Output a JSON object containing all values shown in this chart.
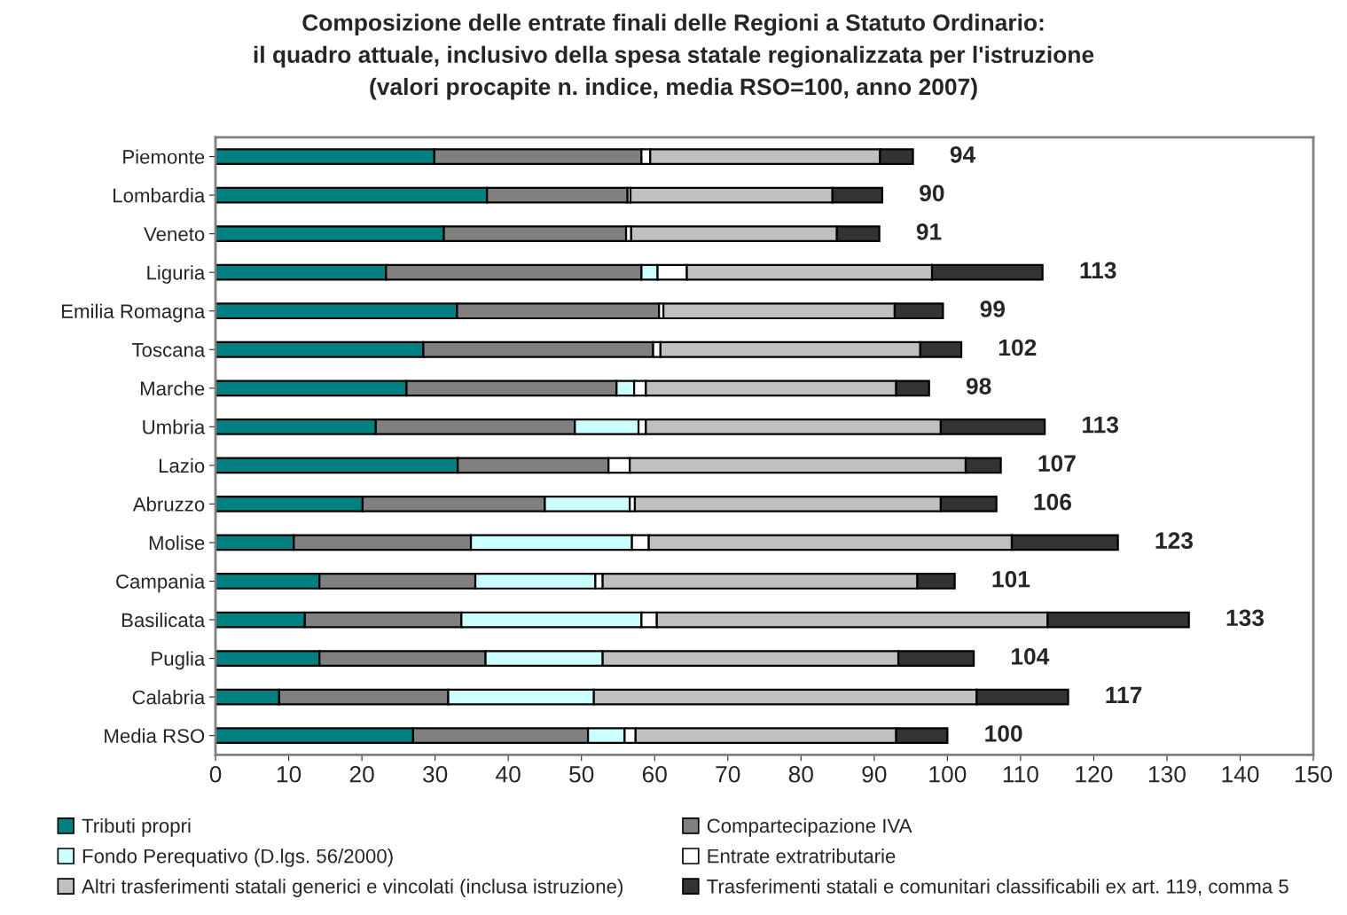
{
  "chart_data": {
    "type": "bar",
    "orientation": "horizontal",
    "stacked": true,
    "title": "Composizione delle entrate finali delle Regioni a Statuto Ordinario:\nil quadro attuale, inclusivo della spesa statale regionalizzata per l'istruzione\n(valori procapite n. indice, media RSO=100, anno 2007)",
    "categories": [
      "Piemonte",
      "Lombardia",
      "Veneto",
      "Liguria",
      "Emilia Romagna",
      "Toscana",
      "Marche",
      "Umbria",
      "Lazio",
      "Abruzzo",
      "Molise",
      "Campania",
      "Basilicata",
      "Puglia",
      "Calabria",
      "Media RSO"
    ],
    "series": [
      {
        "name": "Tributi propri",
        "color": "#008080",
        "values": [
          29.9,
          37.1,
          31.2,
          23.3,
          33.0,
          28.4,
          26.1,
          21.9,
          33.1,
          20.1,
          10.7,
          14.2,
          12.2,
          14.2,
          8.7,
          27.0
        ]
      },
      {
        "name": "Compartecipazione IVA",
        "color": "#808080",
        "values": [
          28.3,
          19.2,
          24.9,
          34.9,
          27.6,
          31.4,
          28.7,
          27.2,
          20.6,
          24.9,
          24.2,
          21.3,
          21.4,
          22.7,
          23.1,
          23.9
        ]
      },
      {
        "name": "Fondo Perequativo (D.lgs. 56/2000)",
        "color": "#ccffff",
        "values": [
          null,
          null,
          null,
          2.2,
          null,
          null,
          2.4,
          8.7,
          null,
          11.6,
          22.0,
          16.4,
          24.6,
          16.0,
          19.9,
          5.0
        ]
      },
      {
        "name": "Entrate extratributarie",
        "color": "#ffffff",
        "values": [
          1.2,
          0.4,
          0.7,
          4.0,
          0.6,
          1.0,
          1.6,
          1.0,
          2.9,
          0.7,
          2.3,
          1.0,
          2.1,
          null,
          null,
          1.5
        ]
      },
      {
        "name": "Altri trasferimenti statali generici e vincolati (inclusa istruzione)",
        "color": "#c0c0c0",
        "values": [
          31.4,
          27.6,
          28.1,
          33.5,
          31.6,
          35.5,
          34.2,
          40.3,
          45.9,
          41.8,
          49.6,
          43.0,
          53.4,
          40.4,
          52.3,
          35.6
        ]
      },
      {
        "name": "Trasferimenti statali e comunitari classificabili ex art. 119, comma 5",
        "color": "#333333",
        "values": [
          4.5,
          6.8,
          5.8,
          15.1,
          6.6,
          5.6,
          4.5,
          14.2,
          4.8,
          7.6,
          14.5,
          5.1,
          19.3,
          10.3,
          12.5,
          7.0
        ]
      }
    ],
    "totals": [
      "94",
      "90",
      "91",
      "113",
      "99",
      "102",
      "98",
      "113",
      "107",
      "106",
      "123",
      "101",
      "133",
      "104",
      "117",
      "100"
    ],
    "xlim": [
      0,
      150
    ],
    "xticks": [
      0,
      10,
      20,
      30,
      40,
      50,
      60,
      70,
      80,
      90,
      100,
      110,
      120,
      130,
      140,
      150
    ],
    "grid": false,
    "legend": "bottom"
  }
}
